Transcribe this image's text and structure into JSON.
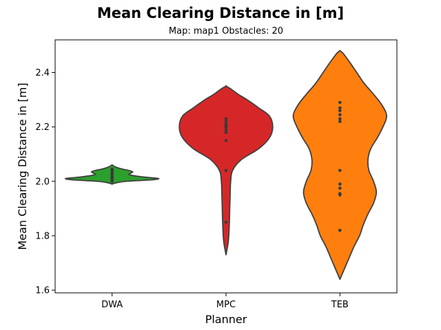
{
  "chart_data": {
    "type": "violin",
    "title": "Mean Clearing Distance in [m]",
    "subtitle": "Map: map1 Obstacles: 20",
    "xlabel": "Planner",
    "ylabel": "Mean Clearing Distance in [m]",
    "ylim": [
      1.59,
      2.52
    ],
    "yticks": [
      "1.6",
      "1.8",
      "2.0",
      "2.2",
      "2.4"
    ],
    "grid": false,
    "categories": [
      "DWA",
      "MPC",
      "TEB"
    ],
    "series": [
      {
        "category": "DWA",
        "color": "#2ca02c",
        "range": [
          1.99,
          2.06
        ],
        "points": [
          2.0,
          2.005,
          2.01,
          2.015,
          2.02,
          2.025,
          2.03,
          2.035,
          2.04,
          2.045
        ],
        "profile": [
          [
            1.99,
            0.0
          ],
          [
            1.995,
            0.1
          ],
          [
            2.0,
            0.3
          ],
          [
            2.005,
            0.8
          ],
          [
            2.01,
            1.0
          ],
          [
            2.015,
            0.72
          ],
          [
            2.02,
            0.5
          ],
          [
            2.025,
            0.36
          ],
          [
            2.03,
            0.4
          ],
          [
            2.035,
            0.44
          ],
          [
            2.04,
            0.36
          ],
          [
            2.045,
            0.22
          ],
          [
            2.05,
            0.12
          ],
          [
            2.055,
            0.05
          ],
          [
            2.06,
            0.0
          ]
        ]
      },
      {
        "category": "MPC",
        "color": "#d62728",
        "range": [
          1.73,
          2.35
        ],
        "points": [
          1.85,
          2.04,
          2.15,
          2.18,
          2.19,
          2.2,
          2.205,
          2.21,
          2.22,
          2.23
        ],
        "profile": [
          [
            1.73,
            0.0
          ],
          [
            1.78,
            0.05
          ],
          [
            1.84,
            0.07
          ],
          [
            1.9,
            0.08
          ],
          [
            1.96,
            0.09
          ],
          [
            2.0,
            0.1
          ],
          [
            2.04,
            0.14
          ],
          [
            2.08,
            0.33
          ],
          [
            2.12,
            0.7
          ],
          [
            2.16,
            0.93
          ],
          [
            2.2,
            1.0
          ],
          [
            2.24,
            0.93
          ],
          [
            2.27,
            0.7
          ],
          [
            2.3,
            0.45
          ],
          [
            2.32,
            0.26
          ],
          [
            2.34,
            0.1
          ],
          [
            2.35,
            0.0
          ]
        ]
      },
      {
        "category": "TEB",
        "color": "#ff7f0e",
        "range": [
          1.64,
          2.48
        ],
        "points": [
          1.82,
          1.95,
          1.955,
          1.975,
          1.99,
          2.04,
          2.22,
          2.23,
          2.245,
          2.26,
          2.27,
          2.29
        ],
        "profile": [
          [
            1.64,
            0.0
          ],
          [
            1.68,
            0.1
          ],
          [
            1.72,
            0.2
          ],
          [
            1.76,
            0.3
          ],
          [
            1.8,
            0.42
          ],
          [
            1.84,
            0.5
          ],
          [
            1.88,
            0.6
          ],
          [
            1.92,
            0.72
          ],
          [
            1.96,
            0.78
          ],
          [
            2.0,
            0.72
          ],
          [
            2.04,
            0.62
          ],
          [
            2.08,
            0.6
          ],
          [
            2.12,
            0.66
          ],
          [
            2.16,
            0.8
          ],
          [
            2.2,
            0.92
          ],
          [
            2.24,
            1.0
          ],
          [
            2.28,
            0.9
          ],
          [
            2.32,
            0.72
          ],
          [
            2.36,
            0.52
          ],
          [
            2.4,
            0.36
          ],
          [
            2.44,
            0.2
          ],
          [
            2.47,
            0.07
          ],
          [
            2.48,
            0.0
          ]
        ]
      }
    ]
  }
}
